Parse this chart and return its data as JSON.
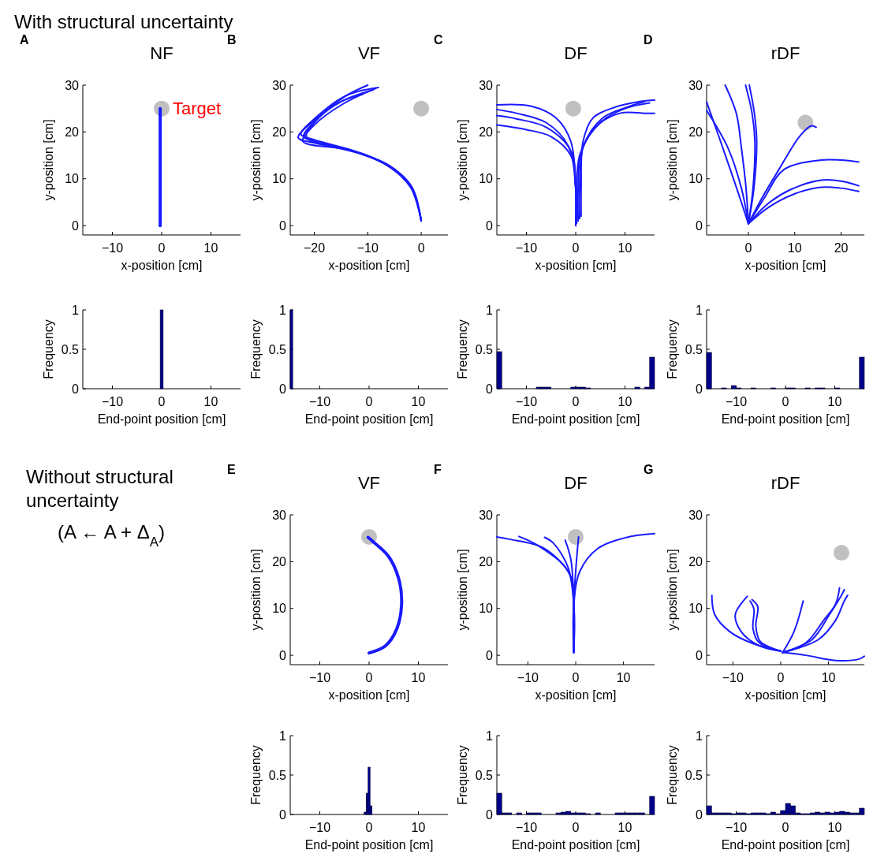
{
  "chart_data": [
    {
      "type": "line",
      "title": "NF",
      "xlabel": "x-position [cm]",
      "ylabel": "y-position [cm]",
      "xlim": [
        -16,
        16
      ],
      "ylim": [
        -2,
        30
      ],
      "xticks": [
        -10,
        0,
        10
      ],
      "yticks": [
        0,
        10,
        20,
        30
      ],
      "annotations": [
        "A",
        "With structural uncertainty",
        {
          "text": "Target",
          "x": 0,
          "y": 25
        }
      ],
      "series": [
        {
          "type": "scatter",
          "marker": "circle",
          "color": "#c0c0c0",
          "x": [
            0
          ],
          "values": [
            25
          ]
        },
        {
          "color": "#1a1aff",
          "x": [
            -0.3,
            -0.3,
            -0.3
          ],
          "values": [
            0,
            12,
            25
          ]
        }
      ]
    },
    {
      "type": "line",
      "title": "VF",
      "xlabel": "x-position [cm]",
      "ylabel": "y-position [cm]",
      "xlim": [
        -24.5,
        5
      ],
      "ylim": [
        -2,
        30
      ],
      "xticks": [
        -20,
        -10,
        0
      ],
      "yticks": [
        0,
        10,
        20,
        30
      ],
      "annotations": [
        "B"
      ],
      "series": [
        {
          "type": "scatter",
          "marker": "circle",
          "color": "#c0c0c0",
          "x": [
            0
          ],
          "values": [
            25
          ]
        },
        {
          "color": "#1a1aff",
          "x": [
            0,
            -1.8,
            -6.4,
            -13,
            -20,
            -22,
            -19.5,
            -14.4,
            -10
          ],
          "values": [
            1,
            8.2,
            13,
            16,
            18,
            19,
            22.7,
            27.5,
            30
          ]
        },
        {
          "color": "#1a1aff",
          "x": [
            0,
            -1.9,
            -6.6,
            -13.4,
            -20.5,
            -22.5,
            -19.8,
            -14,
            -8
          ],
          "values": [
            1,
            8.2,
            13,
            16.2,
            18.5,
            19.5,
            23,
            27.8,
            29.5
          ]
        },
        {
          "color": "#1a1aff",
          "x": [
            0,
            -1.7,
            -6.2,
            -12.8,
            -19.8,
            -23,
            -20.5,
            -15,
            -9
          ],
          "values": [
            1,
            8.2,
            13,
            15.8,
            17.6,
            18.8,
            22,
            26.5,
            29
          ]
        },
        {
          "color": "#1a1aff",
          "x": [
            0,
            -2,
            -6.8,
            -13.8,
            -20.8,
            -21.5,
            -19,
            -15,
            -11
          ],
          "values": [
            1,
            8.2,
            13.2,
            16.4,
            18.2,
            19.3,
            23.2,
            26.5,
            28
          ]
        },
        {
          "color": "#1a1aff",
          "x": [
            0,
            -1.8,
            -6.5,
            -13.2,
            -21.2,
            -22.2,
            -20,
            -14.6,
            -8.5
          ],
          "values": [
            1,
            8.2,
            13,
            16.1,
            17.4,
            18.1,
            21.5,
            26,
            29.3
          ]
        }
      ]
    },
    {
      "type": "line",
      "title": "DF",
      "xlabel": "x-position [cm]",
      "ylabel": "y-position [cm]",
      "xlim": [
        -16,
        16
      ],
      "ylim": [
        -2,
        30
      ],
      "xticks": [
        -10,
        0,
        10
      ],
      "yticks": [
        0,
        10,
        20,
        30
      ],
      "annotations": [
        "C"
      ],
      "series": [
        {
          "type": "scatter",
          "marker": "circle",
          "color": "#c0c0c0",
          "x": [
            -0.5
          ],
          "values": [
            25
          ]
        },
        {
          "color": "#1a1aff",
          "x": [
            0,
            0,
            -1,
            -5,
            -10,
            -16
          ],
          "values": [
            0,
            8,
            15,
            19,
            20.5,
            21.5
          ]
        },
        {
          "color": "#1a1aff",
          "x": [
            0,
            0,
            -1,
            -6,
            -12,
            -16
          ],
          "values": [
            0,
            8,
            16,
            21,
            22.8,
            23.5
          ]
        },
        {
          "color": "#1a1aff",
          "x": [
            0,
            0,
            -1.5,
            -6,
            -12,
            -16
          ],
          "values": [
            0,
            8,
            17,
            22,
            24,
            24.8
          ]
        },
        {
          "color": "#1a1aff",
          "x": [
            0,
            0,
            -1,
            -4,
            -9,
            -16
          ],
          "values": [
            0,
            8,
            18,
            23,
            25.5,
            25.8
          ]
        },
        {
          "color": "#1a1aff",
          "x": [
            0.2,
            0.2,
            0.8,
            4,
            9,
            14,
            16
          ],
          "values": [
            0.5,
            8,
            15,
            21,
            24,
            24,
            24
          ]
        },
        {
          "color": "#1a1aff",
          "x": [
            0.5,
            0.5,
            1.2,
            5,
            10,
            15
          ],
          "values": [
            1,
            8,
            16,
            22,
            25,
            26.2
          ]
        },
        {
          "color": "#1a1aff",
          "x": [
            0.8,
            0.8,
            1.6,
            5.5,
            11,
            14
          ],
          "values": [
            1.5,
            8,
            17,
            23,
            25.5,
            26.5
          ]
        },
        {
          "color": "#1a1aff",
          "x": [
            1.1,
            1.1,
            1.5,
            3.5,
            8,
            13,
            16
          ],
          "values": [
            2,
            8,
            18,
            23,
            25.3,
            26.5,
            26.8
          ]
        }
      ]
    },
    {
      "type": "line",
      "title": "rDF",
      "xlabel": "x-position [cm]",
      "ylabel": "y-position [cm]",
      "xlim": [
        -9,
        25
      ],
      "ylim": [
        -2,
        30
      ],
      "xticks": [
        0,
        10,
        20
      ],
      "yticks": [
        0,
        10,
        20,
        30
      ],
      "annotations": [
        "D"
      ],
      "series": [
        {
          "type": "scatter",
          "marker": "circle",
          "color": "#c0c0c0",
          "x": [
            12.3
          ],
          "values": [
            22
          ]
        },
        {
          "color": "#1a1aff",
          "x": [
            0,
            -2.6,
            -6,
            -9
          ],
          "values": [
            0.4,
            8.2,
            18,
            26.4
          ]
        },
        {
          "color": "#1a1aff",
          "x": [
            0,
            -1.5,
            -4.4,
            -9
          ],
          "values": [
            0.4,
            8,
            16.6,
            24.6
          ]
        },
        {
          "color": "#1a1aff",
          "x": [
            0,
            -0.5,
            -1.5,
            -2.6,
            -5
          ],
          "values": [
            0.4,
            8,
            16.6,
            24,
            30
          ]
        },
        {
          "color": "#1a1aff",
          "x": [
            0,
            1,
            1.4,
            0.8,
            -0.6
          ],
          "values": [
            0.4,
            8,
            18,
            24,
            30
          ]
        },
        {
          "color": "#1a1aff",
          "x": [
            0,
            1.2,
            1.8,
            1.3,
            0.2
          ],
          "values": [
            0.4,
            8,
            18,
            24,
            30
          ]
        },
        {
          "color": "#1a1aff",
          "x": [
            0,
            3,
            6.6,
            11,
            13.5,
            14.6
          ],
          "values": [
            0.4,
            6,
            12,
            19,
            21.3,
            21
          ]
        },
        {
          "color": "#1a1aff",
          "x": [
            0,
            3.5,
            7.7,
            15.7,
            20,
            23.8
          ],
          "values": [
            0.4,
            6,
            12,
            14,
            14,
            13.6
          ]
        },
        {
          "color": "#1a1aff",
          "x": [
            0,
            4,
            8.9,
            15.7,
            20,
            23.8
          ],
          "values": [
            0.4,
            4.5,
            7.6,
            9.7,
            9.5,
            8.5
          ]
        },
        {
          "color": "#1a1aff",
          "x": [
            0,
            4.5,
            10,
            15.7,
            20,
            23.8
          ],
          "values": [
            0.4,
            4,
            6.8,
            8.2,
            8,
            7.3
          ]
        }
      ]
    },
    {
      "type": "histogram",
      "xlabel": "End-point position [cm]",
      "ylabel": "Frequency",
      "xlim": [
        -16,
        16
      ],
      "ylim": [
        0,
        1
      ],
      "xticks": [
        -10,
        0,
        10
      ],
      "yticks": [
        0,
        0.5,
        1
      ],
      "color": "#00008b",
      "bins": [
        -0.3,
        0.3
      ],
      "values": [
        1
      ]
    },
    {
      "type": "histogram",
      "xlabel": "End-point position [cm]",
      "ylabel": "Frequency",
      "xlim": [
        -16,
        16
      ],
      "ylim": [
        0,
        1
      ],
      "xticks": [
        -10,
        0,
        10
      ],
      "yticks": [
        0,
        0.5,
        1
      ],
      "color": "#00008b",
      "bins": [
        -16,
        -15.5
      ],
      "values": [
        1
      ]
    },
    {
      "type": "histogram",
      "xlabel": "End-point position [cm]",
      "ylabel": "Frequency",
      "xlim": [
        -16,
        16
      ],
      "ylim": [
        0,
        1
      ],
      "xticks": [
        -10,
        0,
        10
      ],
      "yticks": [
        0,
        0.5,
        1
      ],
      "color": "#00008b",
      "bins": [
        -16,
        -15,
        -14,
        -13,
        -12,
        -11,
        -10,
        -9,
        -8,
        -7,
        -6,
        -5,
        -4,
        -3,
        -2,
        -1,
        0,
        1,
        2,
        3,
        4,
        5,
        6,
        7,
        8,
        9,
        10,
        11,
        12,
        13,
        14,
        15,
        16
      ],
      "values": [
        0.47,
        0,
        0,
        0,
        0,
        0,
        0,
        0,
        0.02,
        0.02,
        0.02,
        0,
        0,
        0,
        0,
        0.02,
        0.02,
        0.02,
        0.01,
        0,
        0,
        0,
        0,
        0,
        0,
        0,
        0,
        0,
        0.02,
        0,
        0.02,
        0.4
      ]
    },
    {
      "type": "histogram",
      "xlabel": "End-point position [cm]",
      "ylabel": "Frequency",
      "xlim": [
        -16,
        16
      ],
      "ylim": [
        0,
        1
      ],
      "xticks": [
        -10,
        0,
        10
      ],
      "yticks": [
        0,
        0.5,
        1
      ],
      "color": "#00008b",
      "bins": [
        -16,
        -15,
        -14,
        -13,
        -12,
        -11,
        -10,
        -9,
        -8,
        -7,
        -6,
        -5,
        -4,
        -3,
        -2,
        -1,
        0,
        1,
        2,
        3,
        4,
        5,
        6,
        7,
        8,
        9,
        10,
        11,
        12,
        13,
        14,
        15,
        16
      ],
      "values": [
        0.46,
        0,
        0,
        0.01,
        0,
        0.04,
        0.01,
        0,
        0,
        0.01,
        0,
        0,
        0,
        0.01,
        0,
        0,
        0.01,
        0.01,
        0,
        0,
        0.01,
        0,
        0.01,
        0.01,
        0,
        0,
        0.01,
        0,
        0,
        0,
        0,
        0.4
      ]
    },
    {
      "type": "line",
      "title": "VF",
      "xlabel": "x-position [cm]",
      "ylabel": "y-position [cm]",
      "xlim": [
        -16,
        16
      ],
      "ylim": [
        -2,
        30
      ],
      "xticks": [
        -10,
        0,
        10
      ],
      "yticks": [
        0,
        10,
        20,
        30
      ],
      "annotations": [
        "E",
        "Without structural uncertainty",
        "(A ← A + Δ$_{A}$)"
      ],
      "series": [
        {
          "type": "scatter",
          "marker": "circle",
          "color": "#c0c0c0",
          "x": [
            0
          ],
          "values": [
            25.3
          ]
        },
        {
          "color": "#1a1aff",
          "x": [
            0,
            3.3,
            5.6,
            6.6,
            6,
            3.9,
            0.9,
            -0.2
          ],
          "values": [
            0.5,
            2,
            5.6,
            11,
            16.4,
            21.2,
            24.2,
            25.2
          ]
        }
      ]
    },
    {
      "type": "line",
      "title": "DF",
      "xlabel": "x-position [cm]",
      "ylabel": "y-position [cm]",
      "xlim": [
        -16.5,
        16.5
      ],
      "ylim": [
        -2,
        30
      ],
      "xticks": [
        -10,
        0,
        10
      ],
      "yticks": [
        0,
        10,
        20,
        30
      ],
      "annotations": [
        "F"
      ],
      "series": [
        {
          "type": "scatter",
          "marker": "circle",
          "color": "#c0c0c0",
          "x": [
            0
          ],
          "values": [
            25.3
          ]
        },
        {
          "color": "#1a1aff",
          "x": [
            -0.4,
            -0.4,
            -1,
            -6.5,
            -13.9,
            -16.5
          ],
          "values": [
            0.6,
            10.8,
            16.8,
            22.8,
            24.8,
            25.3
          ]
        },
        {
          "color": "#1a1aff",
          "x": [
            -0.4,
            -0.4,
            -1.6,
            -7.8,
            -11.9
          ],
          "values": [
            0.6,
            10.8,
            18,
            23.4,
            25.4
          ]
        },
        {
          "color": "#1a1aff",
          "x": [
            -0.4,
            -0.4,
            -1.6,
            -4.7,
            -6.5
          ],
          "values": [
            0.6,
            10.8,
            18.8,
            24,
            25.2
          ]
        },
        {
          "color": "#1a1aff",
          "x": [
            -0.4,
            -0.4,
            -1,
            -2.2
          ],
          "values": [
            0.6,
            10.8,
            20.4,
            24.6
          ]
        },
        {
          "color": "#1a1aff",
          "x": [
            -0.4,
            -0.4,
            0,
            0.6
          ],
          "values": [
            0.6,
            10.8,
            18,
            25.3
          ]
        },
        {
          "color": "#1a1aff",
          "x": [
            -0.4,
            -0.4,
            0.9,
            4.6,
            10.7,
            16.5
          ],
          "values": [
            0.6,
            10.8,
            18,
            22.8,
            25.2,
            26
          ]
        }
      ]
    },
    {
      "type": "line",
      "title": "rDF",
      "xlabel": "x-position [cm]",
      "ylabel": "y-position [cm]",
      "xlim": [
        -15.5,
        17.5
      ],
      "ylim": [
        -2,
        30
      ],
      "xticks": [
        -10,
        0,
        10
      ],
      "yticks": [
        0,
        10,
        20,
        30
      ],
      "annotations": [
        "G"
      ],
      "series": [
        {
          "type": "scatter",
          "marker": "circle",
          "color": "#c0c0c0",
          "x": [
            12.7
          ],
          "values": [
            21.9
          ]
        },
        {
          "color": "#1a1aff",
          "x": [
            0,
            -5.8,
            -10.7,
            -13.8,
            -14.4
          ],
          "values": [
            0.9,
            2.5,
            5.1,
            8.7,
            12.8
          ]
        },
        {
          "color": "#1a1aff",
          "x": [
            0,
            -4.6,
            -8.3,
            -9.5,
            -7
          ],
          "values": [
            0.9,
            2.1,
            5.1,
            8.7,
            12.6
          ]
        },
        {
          "color": "#1a1aff",
          "x": [
            0,
            -4.6,
            -5.8,
            -5.6,
            -6.4
          ],
          "values": [
            0.9,
            2.8,
            5.7,
            9.8,
            11.6
          ]
        },
        {
          "color": "#1a1aff",
          "x": [
            0,
            -4.3,
            -5.2,
            -4.8,
            -6
          ],
          "values": [
            0.9,
            3,
            6.3,
            10.4,
            11.9
          ]
        },
        {
          "color": "#1a1aff",
          "x": [
            0.4,
            2.8,
            4.7
          ],
          "values": [
            0.6,
            5.1,
            11.6
          ]
        },
        {
          "color": "#1a1aff",
          "x": [
            0.4,
            5.3,
            9,
            11.5,
            12.3
          ],
          "values": [
            0.6,
            2.7,
            7.5,
            11,
            14.4
          ]
        },
        {
          "color": "#1a1aff",
          "x": [
            0.4,
            6.5,
            10.2,
            12.7,
            13.3
          ],
          "values": [
            0.6,
            3.3,
            8.7,
            12.8,
            14
          ]
        },
        {
          "color": "#1a1aff",
          "x": [
            0.4,
            7.8,
            11.5,
            13.3,
            14
          ],
          "values": [
            0.6,
            3.3,
            7.5,
            11.6,
            12.8
          ]
        },
        {
          "color": "#1a1aff",
          "x": [
            0.4,
            5.3,
            11.5,
            16.4,
            17.5
          ],
          "values": [
            0.6,
            0,
            -1.1,
            -0.8,
            -0.2
          ]
        }
      ]
    },
    {
      "type": "histogram",
      "xlabel": "End-point position [cm]",
      "ylabel": "Frequency",
      "xlim": [
        -16,
        16
      ],
      "ylim": [
        0,
        1
      ],
      "xticks": [
        -10,
        0,
        10
      ],
      "yticks": [
        0,
        0.5,
        1
      ],
      "color": "#00008b",
      "bins": [
        -1,
        -0.6,
        -0.2,
        0.2,
        0.6
      ],
      "values": [
        0.03,
        0.27,
        0.6,
        0.11
      ]
    },
    {
      "type": "histogram",
      "xlabel": "End-point position [cm]",
      "ylabel": "Frequency",
      "xlim": [
        -16,
        16
      ],
      "ylim": [
        0,
        1
      ],
      "xticks": [
        -10,
        0,
        10
      ],
      "yticks": [
        0,
        0.5,
        1
      ],
      "color": "#00008b",
      "bins": [
        -16,
        -15,
        -14,
        -13,
        -12,
        -11,
        -10,
        -9,
        -8,
        -7,
        -6,
        -5,
        -4,
        -3,
        -2,
        -1,
        0,
        1,
        2,
        3,
        4,
        5,
        6,
        7,
        8,
        9,
        10,
        11,
        12,
        13,
        14,
        15,
        16
      ],
      "values": [
        0.27,
        0.02,
        0.02,
        0,
        0.02,
        0,
        0.02,
        0.02,
        0.02,
        0,
        0,
        0,
        0.02,
        0.03,
        0.04,
        0.02,
        0.02,
        0.02,
        0.01,
        0,
        0.02,
        0,
        0,
        0,
        0.02,
        0.02,
        0.02,
        0.02,
        0.02,
        0.02,
        0,
        0.23
      ]
    },
    {
      "type": "histogram",
      "xlabel": "End-point position [cm]",
      "ylabel": "Frequency",
      "xlim": [
        -16,
        16
      ],
      "ylim": [
        0,
        1
      ],
      "xticks": [
        -10,
        0,
        10
      ],
      "yticks": [
        0,
        0.5,
        1
      ],
      "color": "#00008b",
      "bins": [
        -16,
        -15,
        -14,
        -13,
        -12,
        -11,
        -10,
        -9,
        -8,
        -7,
        -6,
        -5,
        -4,
        -3,
        -2,
        -1,
        0,
        1,
        2,
        3,
        4,
        5,
        6,
        7,
        8,
        9,
        10,
        11,
        12,
        13,
        14,
        15,
        16
      ],
      "values": [
        0.11,
        0.02,
        0.02,
        0.02,
        0.02,
        0.01,
        0.02,
        0.02,
        0.01,
        0.02,
        0.02,
        0.02,
        0.01,
        0.03,
        0.01,
        0.05,
        0.14,
        0.11,
        0.02,
        0.01,
        0.01,
        0.02,
        0.03,
        0.02,
        0.03,
        0.02,
        0.03,
        0.04,
        0.03,
        0.02,
        0.02,
        0.08
      ]
    }
  ]
}
